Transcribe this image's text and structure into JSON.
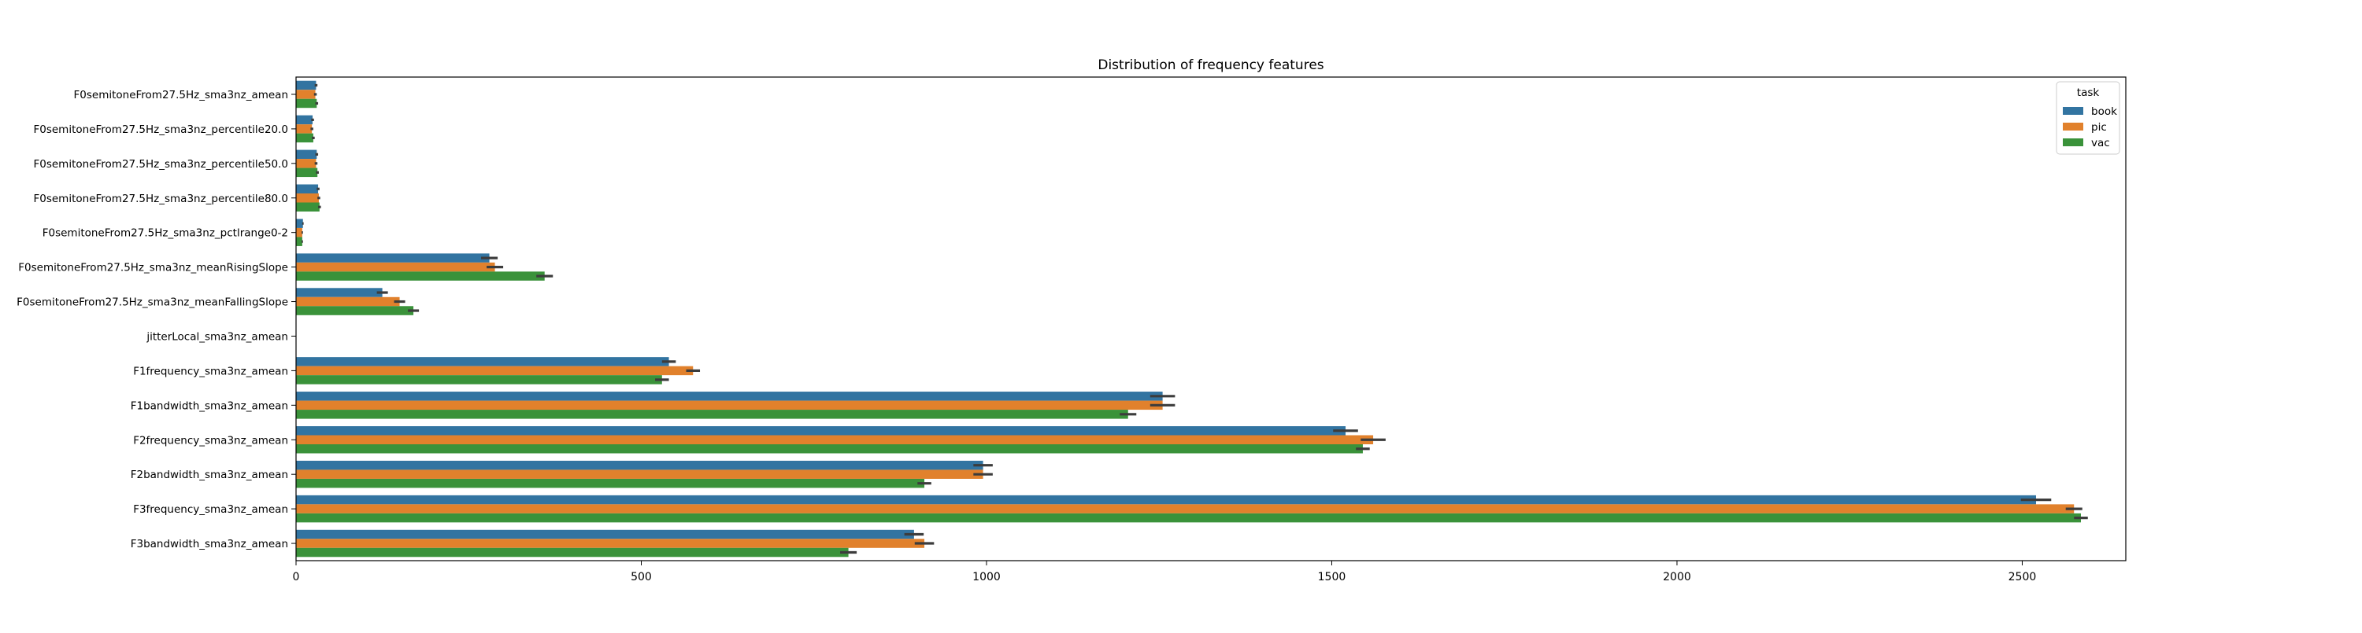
{
  "chart_data": {
    "type": "bar",
    "orientation": "horizontal",
    "title": "Distribution of frequency features",
    "xlabel": "",
    "ylabel": "",
    "xlim": [
      0,
      2650
    ],
    "xticks": [
      0,
      500,
      1000,
      1500,
      2000,
      2500
    ],
    "grid": false,
    "error_bars": true,
    "legend": {
      "title": "task",
      "position": "top-right"
    },
    "categories": [
      "F0semitoneFrom27.5Hz_sma3nz_amean",
      "F0semitoneFrom27.5Hz_sma3nz_percentile20.0",
      "F0semitoneFrom27.5Hz_sma3nz_percentile50.0",
      "F0semitoneFrom27.5Hz_sma3nz_percentile80.0",
      "F0semitoneFrom27.5Hz_sma3nz_pctlrange0-2",
      "F0semitoneFrom27.5Hz_sma3nz_meanRisingSlope",
      "F0semitoneFrom27.5Hz_sma3nz_meanFallingSlope",
      "jitterLocal_sma3nz_amean",
      "F1frequency_sma3nz_amean",
      "F1bandwidth_sma3nz_amean",
      "F2frequency_sma3nz_amean",
      "F2bandwidth_sma3nz_amean",
      "F3frequency_sma3nz_amean",
      "F3bandwidth_sma3nz_amean"
    ],
    "series": [
      {
        "name": "book",
        "color": "#3274a1",
        "values": [
          29,
          24,
          30,
          32,
          10,
          280,
          125,
          0.02,
          540,
          1255,
          1520,
          995,
          2520,
          895
        ],
        "errors": [
          2,
          2,
          2,
          2,
          1,
          12,
          8,
          0.01,
          10,
          18,
          18,
          14,
          22,
          14
        ]
      },
      {
        "name": "pic",
        "color": "#e1812c",
        "values": [
          28,
          23,
          29,
          33,
          9,
          288,
          150,
          0.02,
          575,
          1255,
          1560,
          995,
          2575,
          910
        ],
        "errors": [
          2,
          2,
          2,
          2,
          1,
          12,
          8,
          0.01,
          10,
          18,
          18,
          14,
          12,
          14
        ]
      },
      {
        "name": "vac",
        "color": "#3a923a",
        "values": [
          30,
          25,
          31,
          34,
          9,
          360,
          170,
          0.02,
          530,
          1205,
          1545,
          910,
          2585,
          800
        ],
        "errors": [
          2,
          2,
          2,
          2,
          1,
          12,
          8,
          0.01,
          10,
          12,
          10,
          10,
          10,
          12
        ]
      }
    ]
  }
}
